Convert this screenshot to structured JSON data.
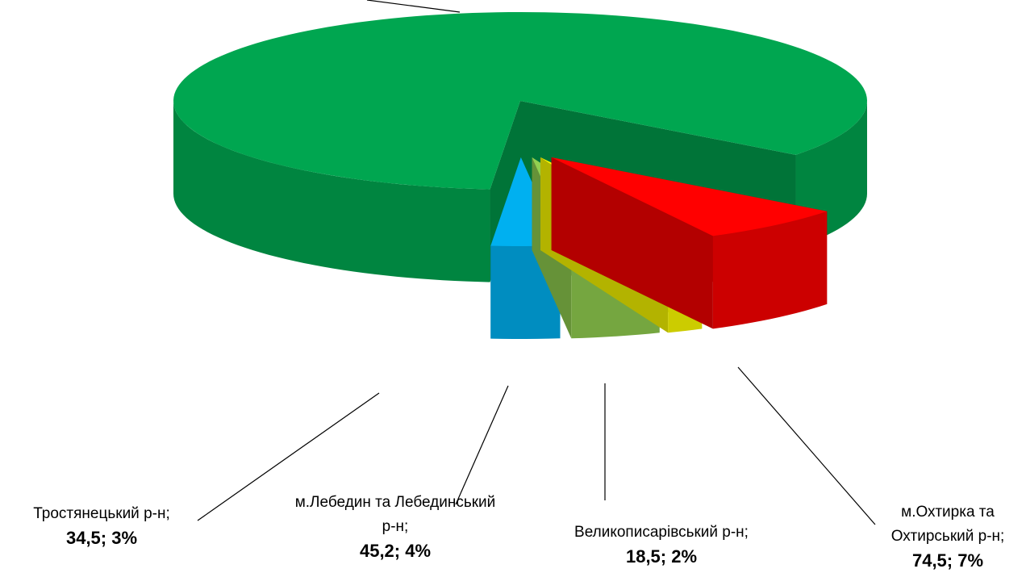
{
  "chart_data": {
    "type": "pie3d",
    "categories": [
      null,
      "м.Охтирка та Охтирський р-н;",
      "Великописарівський р-н;",
      "м.Лебедин та Лебединський р-н;",
      "Тростянецький р-н;"
    ],
    "values": [
      907,
      74.5,
      18.5,
      45.2,
      34.5
    ],
    "value_labels": [
      null,
      "74,5; 7%",
      "18,5; 2%",
      "45,2; 4%",
      "34,5; 3%"
    ],
    "colors": [
      "#00a650",
      "#ff0000",
      "#ffff00",
      "#92d050",
      "#00b0f0"
    ]
  }
}
